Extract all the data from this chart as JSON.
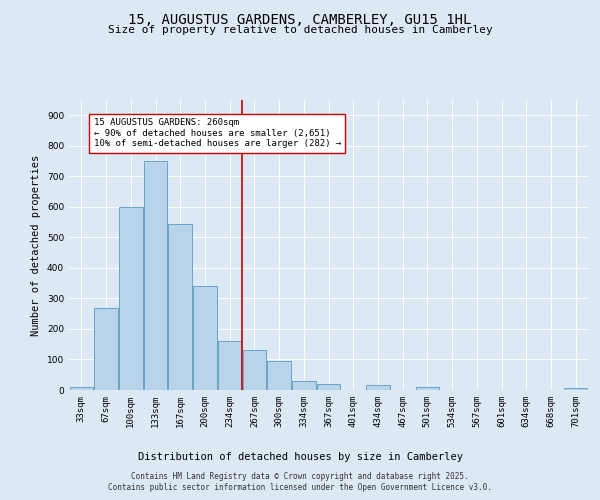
{
  "title_line1": "15, AUGUSTUS GARDENS, CAMBERLEY, GU15 1HL",
  "title_line2": "Size of property relative to detached houses in Camberley",
  "xlabel": "Distribution of detached houses by size in Camberley",
  "ylabel": "Number of detached properties",
  "annotation_line1": "15 AUGUSTUS GARDENS: 260sqm",
  "annotation_line2": "← 90% of detached houses are smaller (2,651)",
  "annotation_line3": "10% of semi-detached houses are larger (282) →",
  "footer_line1": "Contains HM Land Registry data © Crown copyright and database right 2025.",
  "footer_line2": "Contains public sector information licensed under the Open Government Licence v3.0.",
  "bar_labels": [
    "33sqm",
    "67sqm",
    "100sqm",
    "133sqm",
    "167sqm",
    "200sqm",
    "234sqm",
    "267sqm",
    "300sqm",
    "334sqm",
    "367sqm",
    "401sqm",
    "434sqm",
    "467sqm",
    "501sqm",
    "534sqm",
    "567sqm",
    "601sqm",
    "634sqm",
    "668sqm",
    "701sqm"
  ],
  "bar_values": [
    10,
    270,
    600,
    750,
    545,
    340,
    160,
    130,
    95,
    30,
    20,
    0,
    15,
    0,
    10,
    0,
    0,
    0,
    0,
    0,
    5
  ],
  "bar_color": "#b8d4ea",
  "bar_edge_color": "#5a9abe",
  "ref_line_color": "#cc0000",
  "annotation_box_color": "#cc0000",
  "background_color": "#dde8f5",
  "plot_bg_color": "#dde8f5",
  "ylim": [
    0,
    950
  ],
  "yticks": [
    0,
    100,
    200,
    300,
    400,
    500,
    600,
    700,
    800,
    900
  ],
  "grid_color": "#ffffff",
  "title_fontsize": 10,
  "subtitle_fontsize": 8,
  "axis_label_fontsize": 7.5,
  "tick_fontsize": 6.5,
  "annotation_fontsize": 6.5,
  "footer_fontsize": 5.5
}
